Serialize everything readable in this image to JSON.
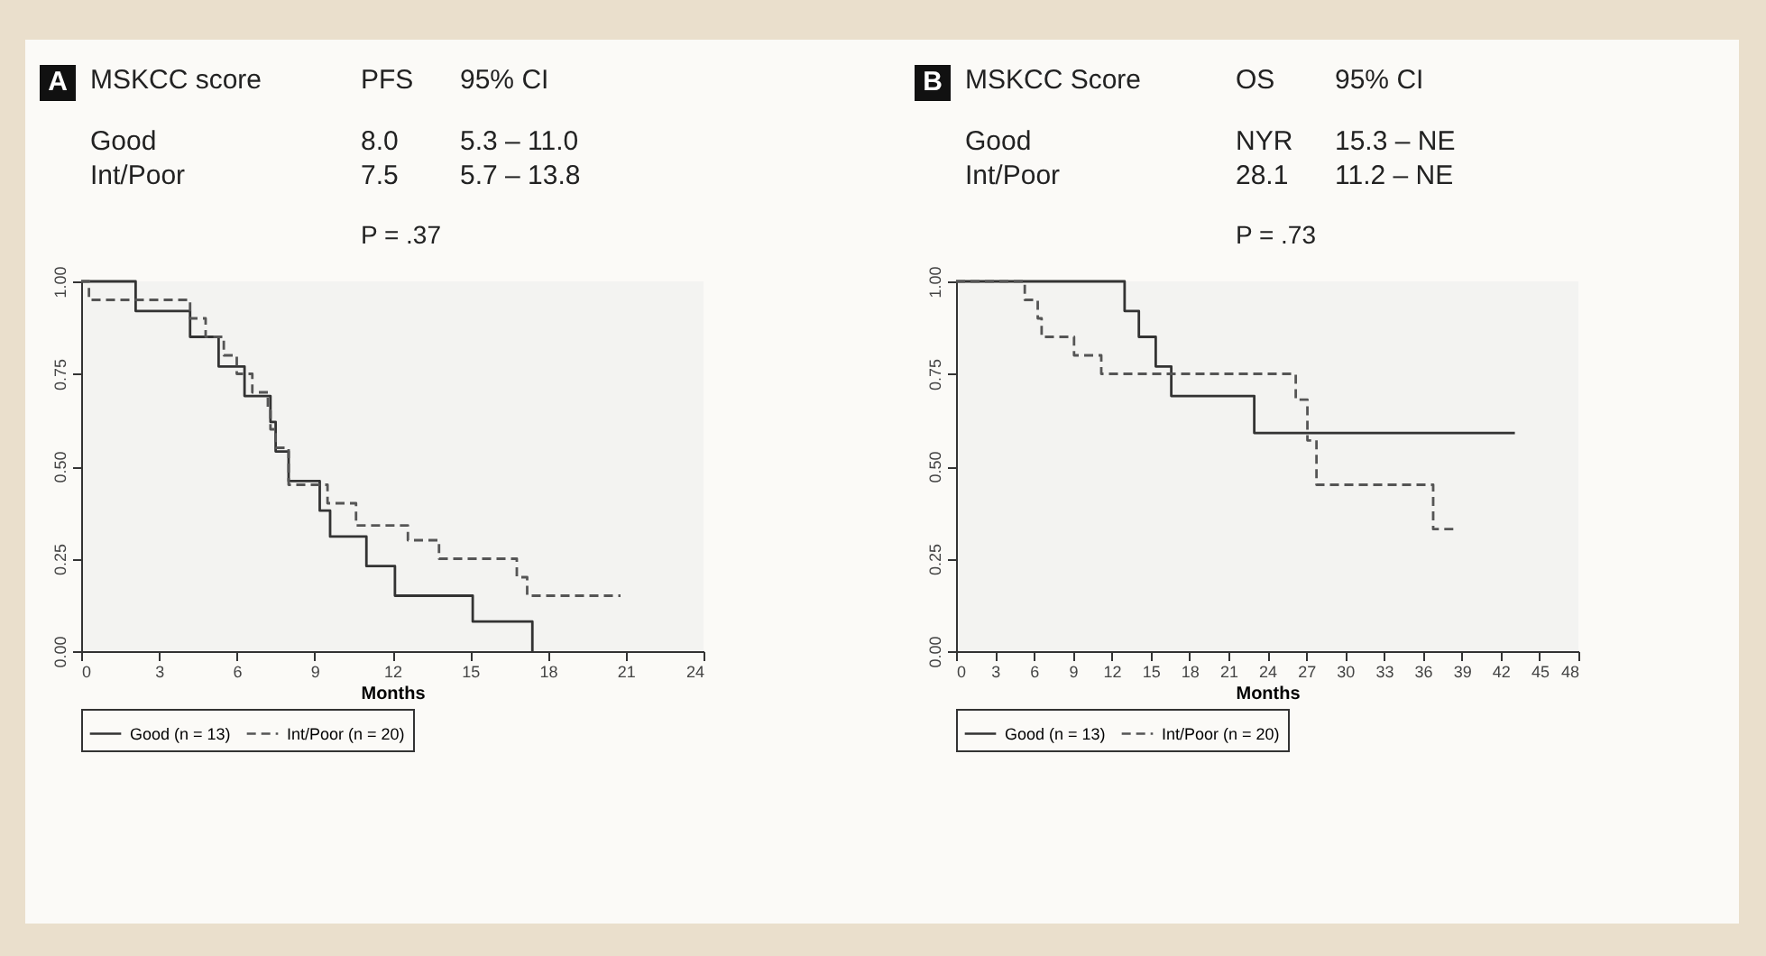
{
  "chart_data": [
    {
      "type": "step",
      "title": "A",
      "annotations": [
        "MSKCC score",
        "PFS",
        "95% CI",
        "Good",
        "8.0",
        "5.3 – 11.0",
        "Int/Poor",
        "7.5",
        "5.7 – 13.8",
        "P = .37"
      ],
      "xlabel": "Months",
      "xlim": [
        0,
        24
      ],
      "xticks": [
        0,
        3,
        6,
        9,
        12,
        15,
        18,
        21,
        24
      ],
      "ylim": [
        0,
        1
      ],
      "yticks": [
        {
          "value": 0,
          "label": "0.00"
        },
        {
          "value": 0.25,
          "label": "0.25"
        },
        {
          "value": 0.5,
          "label": "0.50"
        },
        {
          "value": 0.75,
          "label": "0.75"
        },
        {
          "value": 1,
          "label": "1.00"
        }
      ],
      "legend": "bottom",
      "series": [
        {
          "name": "Good (n = 13)",
          "color": "#333333",
          "line_style": "solid",
          "x": [
            0,
            2.1,
            4.2,
            5.3,
            6.3,
            7.3,
            7.5,
            8.0,
            9.2,
            9.6,
            11.0,
            12.1,
            15.1,
            17.4
          ],
          "values": [
            1.0,
            0.92,
            0.85,
            0.77,
            0.69,
            0.62,
            0.54,
            0.46,
            0.38,
            0.31,
            0.23,
            0.15,
            0.08,
            0.0
          ]
        },
        {
          "name": "Int/Poor (n = 20)",
          "color": "#555555",
          "line_style": "dashed",
          "x": [
            0,
            0.3,
            4.2,
            4.8,
            5.5,
            6.0,
            6.6,
            7.2,
            7.3,
            7.5,
            8.0,
            9.5,
            10.6,
            12.6,
            13.8,
            16.8,
            17.2,
            20.8
          ],
          "values": [
            1.0,
            0.95,
            0.9,
            0.85,
            0.8,
            0.75,
            0.7,
            0.65,
            0.6,
            0.55,
            0.45,
            0.4,
            0.34,
            0.3,
            0.25,
            0.2,
            0.15,
            0.15
          ]
        }
      ]
    },
    {
      "type": "step",
      "title": "B",
      "annotations": [
        "MSKCC Score",
        "OS",
        "95% CI",
        "Good",
        "NYR",
        "15.3 – NE",
        "Int/Poor",
        "28.1",
        "11.2 – NE",
        "P = .73"
      ],
      "xlabel": "Months",
      "xlim": [
        0,
        48
      ],
      "xticks": [
        0,
        3,
        6,
        9,
        12,
        15,
        18,
        21,
        24,
        27,
        30,
        33,
        36,
        39,
        42,
        45,
        48
      ],
      "ylim": [
        0,
        1
      ],
      "yticks": [
        {
          "value": 0,
          "label": "0.00"
        },
        {
          "value": 0.25,
          "label": "0.25"
        },
        {
          "value": 0.5,
          "label": "0.50"
        },
        {
          "value": 0.75,
          "label": "0.75"
        },
        {
          "value": 1,
          "label": "1.00"
        }
      ],
      "legend": "bottom",
      "series": [
        {
          "name": "Good (n = 13)",
          "color": "#333333",
          "line_style": "solid",
          "x": [
            0,
            13.0,
            14.1,
            15.4,
            16.6,
            23.0,
            43.1
          ],
          "values": [
            1.0,
            0.92,
            0.85,
            0.77,
            0.69,
            0.59,
            0.59
          ]
        },
        {
          "name": "Int/Poor (n = 20)",
          "color": "#555555",
          "line_style": "dashed",
          "x": [
            0,
            5.3,
            6.3,
            6.6,
            9.1,
            11.2,
            26.2,
            27.1,
            27.8,
            36.8,
            38.4
          ],
          "values": [
            1.0,
            0.95,
            0.9,
            0.85,
            0.8,
            0.75,
            0.68,
            0.57,
            0.45,
            0.33,
            0.33
          ]
        }
      ]
    }
  ]
}
